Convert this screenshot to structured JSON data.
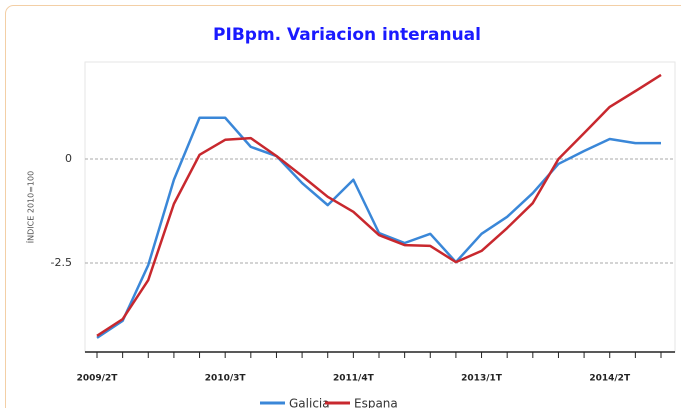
{
  "chart_data": {
    "type": "line",
    "title": "PIBpm. Variacion interanual",
    "y_label": "ÍNDICE 2010=100",
    "categories": [
      "2009/2T",
      null,
      null,
      null,
      null,
      "2010/3T",
      null,
      null,
      null,
      null,
      "2011/4T",
      null,
      null,
      null,
      null,
      "2013/1T",
      null,
      null,
      null,
      null,
      "2014/2T",
      null,
      null
    ],
    "series": [
      {
        "name": "Galicia",
        "color": "#3a87d8",
        "values": [
          -4.3,
          -3.89,
          -2.55,
          -0.5,
          0.99,
          0.99,
          0.29,
          0.07,
          -0.58,
          -1.11,
          -0.5,
          -1.78,
          -2.02,
          -1.8,
          -2.48,
          -1.8,
          -1.39,
          -0.82,
          -0.12,
          0.19,
          0.48,
          0.38,
          0.38
        ]
      },
      {
        "name": "Espana",
        "color": "#c8282e",
        "values": [
          -4.25,
          -3.85,
          -2.91,
          -1.08,
          0.1,
          0.46,
          0.5,
          0.07,
          -0.41,
          -0.91,
          -1.27,
          -1.83,
          -2.07,
          -2.09,
          -2.48,
          -2.21,
          -1.66,
          -1.06,
          0.0,
          0.62,
          1.25,
          1.63,
          2.02
        ]
      }
    ],
    "ylim": [
      -4.64,
      2.33
    ],
    "yticks": [
      0,
      -2.5
    ],
    "grid": true
  }
}
